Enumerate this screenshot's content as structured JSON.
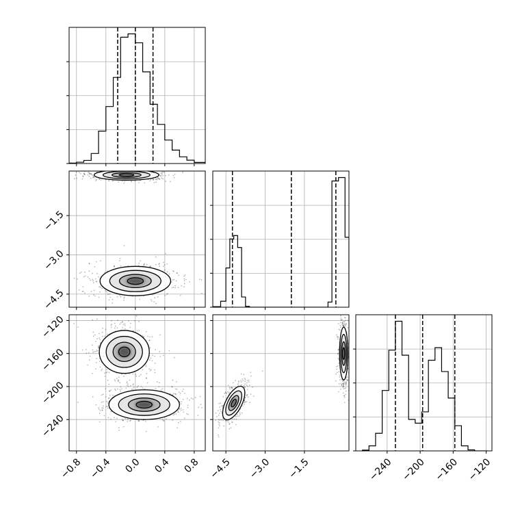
{
  "chart_data": {
    "type": "corner",
    "parameters": [
      {
        "name": "",
        "range": [
          -0.9,
          0.95
        ],
        "ticks": [
          "−0.8",
          "−0.4",
          "0.0",
          "0.4",
          "0.8"
        ],
        "tick_values": [
          -0.8,
          -0.4,
          0.0,
          0.4,
          0.8
        ],
        "quantiles": [
          -0.24,
          0.0,
          0.24
        ]
      },
      {
        "name": "",
        "range": [
          -5.0,
          0.2
        ],
        "ticks": [
          "−4.5",
          "−3.0",
          "−1.5"
        ],
        "tick_values": [
          -4.5,
          -3.0,
          -1.5
        ],
        "quantiles": [
          -4.25,
          -2.0,
          -0.3
        ]
      },
      {
        "name": "",
        "range": [
          -278,
          -113
        ],
        "ticks": [
          "−240",
          "−200",
          "−160",
          "−120"
        ],
        "tick_values": [
          -240,
          -200,
          -160,
          -120
        ],
        "quantiles": [
          -230,
          -197,
          -158
        ]
      }
    ],
    "marginals": [
      {
        "param": 0,
        "bin_edges": [
          -0.9,
          -0.8,
          -0.7,
          -0.6,
          -0.5,
          -0.4,
          -0.3,
          -0.2,
          -0.1,
          0.0,
          0.1,
          0.2,
          0.3,
          0.4,
          0.5,
          0.6,
          0.7,
          0.8,
          0.95
        ],
        "counts": [
          0.2,
          0.6,
          1.4,
          4.5,
          14.5,
          25.5,
          38.5,
          56.5,
          58.0,
          54.0,
          41.0,
          26.5,
          17.5,
          10.5,
          6.0,
          3.0,
          1.5,
          0.5
        ]
      },
      {
        "param": 1,
        "bin_edges": [
          -5.0,
          -4.7,
          -4.5,
          -4.35,
          -4.2,
          -4.05,
          -3.9,
          -3.75,
          -3.6,
          -0.6,
          -0.45,
          -0.2,
          0.05,
          0.2
        ],
        "counts": [
          0.3,
          3.5,
          23.0,
          40.0,
          42.0,
          35.0,
          6.0,
          0.5,
          0.0,
          3.0,
          74.0,
          76.0,
          41.0
        ]
      },
      {
        "param": 2,
        "bin_edges": [
          -270,
          -262,
          -254,
          -246,
          -238,
          -230,
          -222,
          -214,
          -206,
          -198,
          -190,
          -182,
          -174,
          -166,
          -158,
          -150,
          -142,
          -134,
          -126,
          -118
        ],
        "counts": [
          0.3,
          2.0,
          7.0,
          24.0,
          40.0,
          51.5,
          38.0,
          12.5,
          11.0,
          15.5,
          36.0,
          41.0,
          31.5,
          21.0,
          10.0,
          2.0,
          0.4,
          0.0,
          0.0
        ]
      }
    ],
    "joint": [
      {
        "x_param": 0,
        "y_param": 1,
        "clusters": [
          {
            "x": -0.12,
            "y": 0.05,
            "sx": 0.22,
            "sy": 0.1
          },
          {
            "x": 0.0,
            "y": -4.0,
            "sx": 0.24,
            "sy": 0.28
          }
        ]
      },
      {
        "x_param": 0,
        "y_param": 2,
        "clusters": [
          {
            "x": -0.15,
            "y": -158,
            "sx": 0.17,
            "sy": 13
          },
          {
            "x": 0.12,
            "y": -222,
            "sx": 0.24,
            "sy": 9
          }
        ]
      },
      {
        "x_param": 1,
        "y_param": 2,
        "clusters": [
          {
            "x": -4.2,
            "y": -220,
            "sx": 0.18,
            "sy": 11,
            "corr": 0.9
          },
          {
            "x": -0.0,
            "y": -160,
            "sx": 0.08,
            "sy": 16
          }
        ]
      }
    ],
    "grid": true,
    "colors": {
      "ink": "#000000",
      "grid": "#b0b0b0",
      "scatter": "#000000"
    }
  }
}
